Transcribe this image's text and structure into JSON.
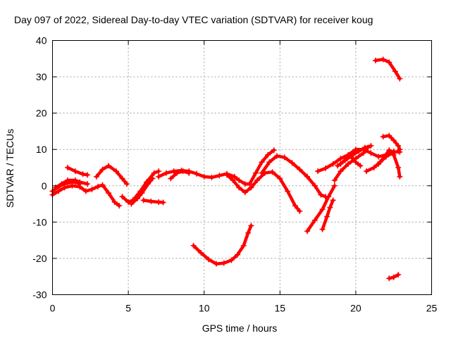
{
  "chart_data": {
    "type": "scatter",
    "title": "Day 097 of 2022, Sidereal Day-to-day VTEC variation (SDTVAR) for receiver koug",
    "xlabel": "GPS time / hours",
    "ylabel": "SDTVAR / TECUs",
    "xlim": [
      0,
      25
    ],
    "ylim": [
      -30,
      40
    ],
    "xticks": [
      0,
      5,
      10,
      15,
      20,
      25
    ],
    "yticks": [
      -30,
      -20,
      -10,
      0,
      10,
      20,
      30,
      40
    ],
    "grid": true,
    "marker": "plus",
    "color": "#ff0000",
    "series": [
      {
        "name": "arc-1",
        "points": [
          [
            0.0,
            -2.5
          ],
          [
            0.4,
            -1.5
          ],
          [
            0.8,
            -0.5
          ],
          [
            1.3,
            0.0
          ],
          [
            1.8,
            -0.3
          ],
          [
            2.2,
            -1.5
          ],
          [
            2.6,
            -1.0
          ],
          [
            3.0,
            -0.2
          ],
          [
            3.3,
            0.2
          ],
          [
            3.7,
            -2.0
          ],
          [
            4.1,
            -4.5
          ],
          [
            4.4,
            -5.5
          ]
        ]
      },
      {
        "name": "arc-2",
        "points": [
          [
            0.0,
            -1.5
          ],
          [
            0.5,
            0.0
          ],
          [
            1.0,
            0.8
          ],
          [
            1.5,
            1.0
          ],
          [
            1.8,
            0.5
          ]
        ]
      },
      {
        "name": "arc-3",
        "points": [
          [
            0.2,
            -0.5
          ],
          [
            0.6,
            0.5
          ],
          [
            1.0,
            1.5
          ],
          [
            1.5,
            1.5
          ],
          [
            1.8,
            1.0
          ],
          [
            2.3,
            0.5
          ]
        ]
      },
      {
        "name": "arc-4",
        "points": [
          [
            1.0,
            5.0
          ],
          [
            1.5,
            4.0
          ],
          [
            2.0,
            3.2
          ],
          [
            2.3,
            3.0
          ]
        ]
      },
      {
        "name": "arc-5",
        "points": [
          [
            2.9,
            2.5
          ],
          [
            3.3,
            4.5
          ],
          [
            3.7,
            5.5
          ],
          [
            4.2,
            4.0
          ],
          [
            4.6,
            2.0
          ],
          [
            4.9,
            0.5
          ]
        ]
      },
      {
        "name": "arc-6",
        "points": [
          [
            4.6,
            -3.0
          ],
          [
            5.0,
            -4.5
          ],
          [
            5.3,
            -4.0
          ],
          [
            5.8,
            -1.5
          ],
          [
            6.2,
            1.0
          ],
          [
            6.7,
            3.5
          ],
          [
            7.0,
            4.0
          ]
        ]
      },
      {
        "name": "arc-7",
        "points": [
          [
            5.2,
            -5.0
          ],
          [
            5.6,
            -3.5
          ],
          [
            5.9,
            -2.0
          ],
          [
            6.3,
            0.5
          ],
          [
            6.6,
            2.0
          ]
        ]
      },
      {
        "name": "arc-8",
        "points": [
          [
            6.0,
            -4.0
          ],
          [
            6.5,
            -4.3
          ],
          [
            7.0,
            -4.5
          ],
          [
            7.3,
            -4.6
          ]
        ]
      },
      {
        "name": "arc-9",
        "points": [
          [
            7.0,
            2.5
          ],
          [
            7.5,
            3.5
          ],
          [
            8.0,
            4.0
          ],
          [
            8.5,
            4.2
          ],
          [
            9.0,
            4.0
          ],
          [
            9.5,
            3.3
          ],
          [
            10.0,
            2.5
          ],
          [
            10.5,
            2.3
          ],
          [
            11.0,
            2.8
          ],
          [
            11.5,
            3.3
          ],
          [
            12.0,
            2.5
          ],
          [
            12.3,
            1.5
          ],
          [
            12.7,
            0.5
          ],
          [
            13.0,
            0.5
          ]
        ]
      },
      {
        "name": "arc-10",
        "points": [
          [
            7.8,
            2.0
          ],
          [
            8.2,
            3.5
          ],
          [
            8.6,
            4.0
          ],
          [
            9.0,
            3.5
          ]
        ]
      },
      {
        "name": "arc-11",
        "points": [
          [
            9.3,
            -16.5
          ],
          [
            9.8,
            -18.5
          ],
          [
            10.3,
            -20.3
          ],
          [
            10.8,
            -21.5
          ],
          [
            11.3,
            -21.3
          ],
          [
            11.8,
            -20.5
          ],
          [
            12.2,
            -19.0
          ],
          [
            12.6,
            -16.5
          ],
          [
            12.9,
            -13.0
          ],
          [
            13.1,
            -11.0
          ]
        ]
      },
      {
        "name": "arc-12",
        "points": [
          [
            11.5,
            3.0
          ],
          [
            11.9,
            1.5
          ],
          [
            12.3,
            -0.5
          ],
          [
            12.7,
            -1.8
          ],
          [
            13.1,
            -0.5
          ],
          [
            13.5,
            1.5
          ],
          [
            14.0,
            3.5
          ],
          [
            14.5,
            3.8
          ],
          [
            15.0,
            2.0
          ],
          [
            15.5,
            -1.5
          ],
          [
            16.0,
            -5.5
          ],
          [
            16.3,
            -7.0
          ]
        ]
      },
      {
        "name": "arc-13",
        "points": [
          [
            13.0,
            0.5
          ],
          [
            13.4,
            3.5
          ],
          [
            13.8,
            6.5
          ],
          [
            14.2,
            8.5
          ],
          [
            14.6,
            9.8
          ]
        ]
      },
      {
        "name": "arc-14",
        "points": [
          [
            13.8,
            3.5
          ],
          [
            14.3,
            6.5
          ],
          [
            14.8,
            8.2
          ],
          [
            15.3,
            7.8
          ],
          [
            15.8,
            6.3
          ],
          [
            16.3,
            4.5
          ],
          [
            16.8,
            2.5
          ],
          [
            17.3,
            0.0
          ],
          [
            17.7,
            -2.5
          ],
          [
            18.0,
            -3.0
          ]
        ]
      },
      {
        "name": "arc-15",
        "points": [
          [
            16.8,
            -12.5
          ],
          [
            17.3,
            -9.5
          ],
          [
            17.8,
            -6.5
          ],
          [
            18.2,
            -3.0
          ],
          [
            18.6,
            0.0
          ]
        ]
      },
      {
        "name": "arc-16",
        "points": [
          [
            17.8,
            -12.0
          ],
          [
            18.1,
            -8.5
          ],
          [
            18.3,
            -6.0
          ],
          [
            18.5,
            -4.0
          ]
        ]
      },
      {
        "name": "arc-17",
        "points": [
          [
            17.5,
            4.0
          ],
          [
            18.0,
            4.8
          ],
          [
            18.5,
            6.0
          ],
          [
            19.0,
            7.5
          ],
          [
            19.5,
            8.5
          ],
          [
            20.0,
            10.0
          ],
          [
            20.5,
            10.0
          ],
          [
            21.0,
            9.0
          ],
          [
            21.5,
            8.0
          ],
          [
            22.0,
            8.5
          ],
          [
            22.5,
            9.5
          ]
        ]
      },
      {
        "name": "arc-18",
        "points": [
          [
            18.6,
            1.5
          ],
          [
            19.0,
            4.0
          ],
          [
            19.5,
            6.0
          ],
          [
            20.0,
            7.5
          ],
          [
            20.5,
            9.0
          ],
          [
            20.8,
            10.5
          ]
        ]
      },
      {
        "name": "arc-19",
        "points": [
          [
            19.0,
            6.0
          ],
          [
            19.4,
            7.5
          ],
          [
            19.7,
            8.0
          ],
          [
            20.0,
            6.5
          ],
          [
            20.3,
            5.5
          ]
        ]
      },
      {
        "name": "arc-20",
        "points": [
          [
            18.8,
            5.5
          ],
          [
            19.3,
            7.0
          ],
          [
            19.8,
            8.5
          ],
          [
            20.2,
            9.5
          ],
          [
            20.6,
            10.5
          ],
          [
            21.0,
            11.0
          ]
        ]
      },
      {
        "name": "arc-21",
        "points": [
          [
            20.7,
            4.0
          ],
          [
            21.2,
            5.0
          ],
          [
            21.6,
            6.5
          ],
          [
            22.0,
            8.0
          ],
          [
            22.4,
            9.0
          ],
          [
            22.8,
            9.5
          ],
          [
            22.9,
            9.3
          ]
        ]
      },
      {
        "name": "arc-22",
        "points": [
          [
            21.5,
            6.0
          ],
          [
            21.9,
            8.0
          ],
          [
            22.2,
            9.8
          ],
          [
            22.5,
            8.5
          ],
          [
            22.8,
            5.0
          ],
          [
            22.9,
            2.5
          ]
        ]
      },
      {
        "name": "arc-23",
        "points": [
          [
            21.8,
            13.5
          ],
          [
            22.2,
            13.8
          ],
          [
            22.5,
            12.5
          ],
          [
            22.8,
            11.0
          ],
          [
            22.9,
            10.0
          ]
        ]
      },
      {
        "name": "arc-24",
        "points": [
          [
            21.3,
            34.5
          ],
          [
            21.8,
            34.8
          ],
          [
            22.2,
            34.0
          ],
          [
            22.6,
            31.5
          ],
          [
            22.9,
            29.5
          ]
        ]
      },
      {
        "name": "arc-25",
        "points": [
          [
            22.2,
            -25.5
          ],
          [
            22.5,
            -25.2
          ],
          [
            22.8,
            -24.5
          ]
        ]
      }
    ]
  }
}
